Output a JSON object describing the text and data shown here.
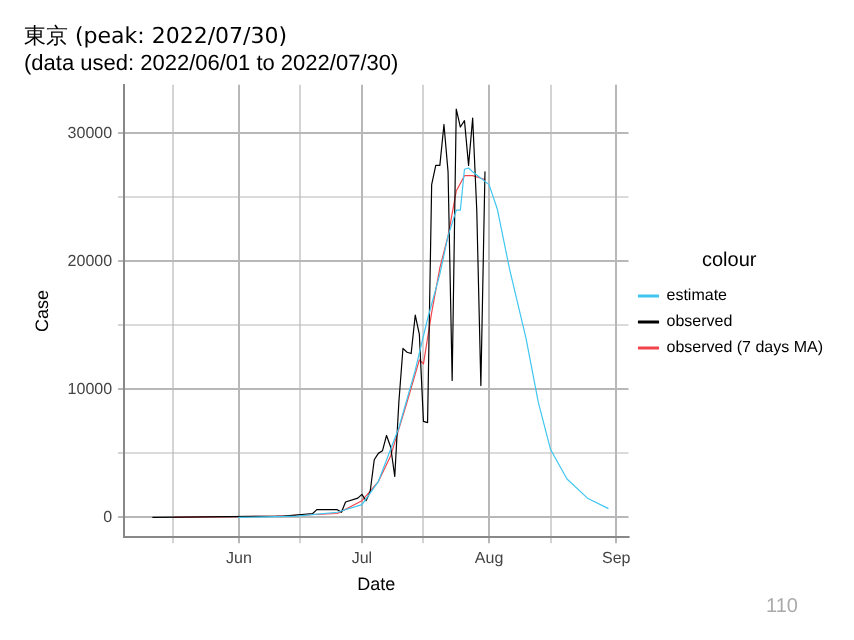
{
  "chart_data": {
    "type": "line",
    "title": "東京 (peak: 2022/07/30)",
    "subtitle": "(data used: 2022/06/01 to 2022/07/30)",
    "xlabel": "Date",
    "ylabel": "Case",
    "legend_title": "colour",
    "legend": "right",
    "grid": true,
    "marker": "none",
    "line_style": "solid",
    "xlim": [
      "2022-05-04",
      "2022-09-04"
    ],
    "xticks": [
      {
        "value": "2022-05-16",
        "label": null
      },
      {
        "value": "2022-06-01",
        "label": "Jun"
      },
      {
        "value": "2022-06-16",
        "label": null
      },
      {
        "value": "2022-07-01",
        "label": "Jul"
      },
      {
        "value": "2022-07-16",
        "label": null
      },
      {
        "value": "2022-08-01",
        "label": "Aug"
      },
      {
        "value": "2022-08-16",
        "label": null
      },
      {
        "value": "2022-09-01",
        "label": "Sep"
      }
    ],
    "ylim": [
      -1550,
      33800
    ],
    "yticks": [
      0,
      {
        "value": 5000,
        "label": null
      },
      10000,
      {
        "value": 15000,
        "label": null
      },
      20000,
      {
        "value": 25000,
        "label": null
      },
      30000
    ],
    "series": [
      {
        "name": "estimate",
        "color": "#3fc6f0",
        "x": [
          "2022-06-01",
          "2022-06-15",
          "2022-06-25",
          "2022-07-01",
          "2022-07-05",
          "2022-07-10",
          "2022-07-14",
          "2022-07-17",
          "2022-07-20",
          "2022-07-22",
          "2022-07-24",
          "2022-07-25",
          "2022-07-26",
          "2022-07-27",
          "2022-07-28",
          "2022-07-30",
          "2022-08-01",
          "2022-08-03",
          "2022-08-06",
          "2022-08-10",
          "2022-08-13",
          "2022-08-16",
          "2022-08-20",
          "2022-08-25",
          "2022-08-30"
        ],
        "values": [
          0,
          100,
          400,
          1000,
          2800,
          7000,
          11500,
          15500,
          19000,
          22000,
          24000,
          24000,
          27200,
          27300,
          27000,
          26500,
          26000,
          24100,
          19400,
          14000,
          9000,
          5300,
          3000,
          1500,
          700
        ]
      },
      {
        "name": "observed",
        "color": "#000000",
        "x": [
          "2022-05-11",
          "2022-06-12",
          "2022-06-19",
          "2022-06-20",
          "2022-06-25",
          "2022-06-26",
          "2022-06-27",
          "2022-06-30",
          "2022-07-01",
          "2022-07-02",
          "2022-07-03",
          "2022-07-04",
          "2022-07-05",
          "2022-07-06",
          "2022-07-07",
          "2022-07-08",
          "2022-07-09",
          "2022-07-10",
          "2022-07-11",
          "2022-07-12",
          "2022-07-13",
          "2022-07-14",
          "2022-07-15",
          "2022-07-16",
          "2022-07-17",
          "2022-07-18",
          "2022-07-19",
          "2022-07-20",
          "2022-07-21",
          "2022-07-22",
          "2022-07-23",
          "2022-07-24",
          "2022-07-25",
          "2022-07-26",
          "2022-07-27",
          "2022-07-28",
          "2022-07-29",
          "2022-07-30",
          "2022-07-31"
        ],
        "values": [
          0,
          100,
          300,
          600,
          600,
          400,
          1200,
          1500,
          1800,
          1300,
          2000,
          4500,
          5000,
          5200,
          6400,
          5500,
          3200,
          9000,
          13200,
          12900,
          12800,
          15800,
          14300,
          7500,
          7400,
          26000,
          27500,
          27500,
          30700,
          27000,
          10700,
          31900,
          30500,
          31000,
          27500,
          31200,
          24000,
          10300,
          27000
        ]
      },
      {
        "name": "observed (7 days MA)",
        "color": "#f0454b",
        "x": [
          "2022-05-16",
          "2022-06-10",
          "2022-06-25",
          "2022-07-01",
          "2022-07-05",
          "2022-07-08",
          "2022-07-12",
          "2022-07-15",
          "2022-07-16",
          "2022-07-18",
          "2022-07-20",
          "2022-07-22",
          "2022-07-24",
          "2022-07-26",
          "2022-07-28",
          "2022-07-30",
          "2022-07-31"
        ],
        "values": [
          0,
          100,
          300,
          1300,
          2800,
          4800,
          9000,
          12300,
          12000,
          16000,
          19500,
          22000,
          25500,
          26700,
          26700,
          26500,
          26400
        ]
      }
    ],
    "annotations": [
      "110"
    ]
  }
}
